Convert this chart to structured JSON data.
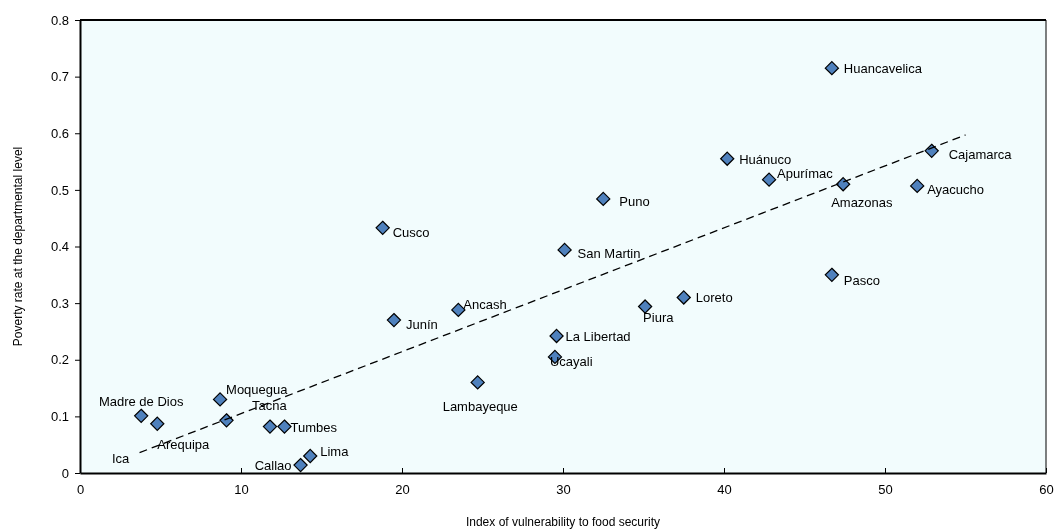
{
  "chart_data": {
    "type": "scatter",
    "xlabel": "Index of vulnerability to food security",
    "ylabel": "Poverty rate at the departmental level",
    "xlim": [
      0,
      60
    ],
    "xticks": [
      0,
      10,
      20,
      30,
      40,
      50,
      60
    ],
    "ylim": [
      0,
      0.8
    ],
    "yticks": [
      0,
      0.1,
      0.2,
      0.3,
      0.4,
      0.5,
      0.6,
      0.7,
      0.8
    ],
    "grid": false,
    "series": [
      {
        "color": "#4f81bd",
        "marker": "diamond",
        "x": [
          46.7,
          40.2,
          42.8,
          47.4,
          52.9,
          52.0,
          32.5,
          18.8,
          30.1,
          46.7,
          37.5,
          35.1,
          23.5,
          19.5,
          29.6,
          29.5,
          24.7,
          8.7,
          3.8,
          4.8,
          9.1,
          11.8,
          12.7,
          13.7,
          14.3
        ],
        "values": [
          0.715,
          0.555,
          0.518,
          0.51,
          0.569,
          0.507,
          0.484,
          0.433,
          0.394,
          0.35,
          0.31,
          0.294,
          0.288,
          0.27,
          0.242,
          0.205,
          0.16,
          0.13,
          0.101,
          0.087,
          0.093,
          0.082,
          0.082,
          0.014,
          0.03
        ]
      },
      {
        "type": "line",
        "color": "#000000",
        "line_style": "dashed",
        "marker": "none",
        "x": [
          3.7,
          55
        ],
        "values": [
          0.036,
          0.597
        ]
      }
    ],
    "annotations": [
      {
        "text": "Huancavelica",
        "x": 46.7,
        "y": 0.715
      },
      {
        "text": "Huánuco",
        "x": 40.2,
        "y": 0.555
      },
      {
        "text": "Apurímac",
        "x": 42.8,
        "y": 0.518
      },
      {
        "text": "Amazonas",
        "x": 47.4,
        "y": 0.51
      },
      {
        "text": "Cajamarca",
        "x": 52.9,
        "y": 0.569
      },
      {
        "text": "Ayacucho",
        "x": 52.0,
        "y": 0.507
      },
      {
        "text": "Puno",
        "x": 32.5,
        "y": 0.484
      },
      {
        "text": "Cusco",
        "x": 18.8,
        "y": 0.433
      },
      {
        "text": "San Martin",
        "x": 30.1,
        "y": 0.394
      },
      {
        "text": "Pasco",
        "x": 46.7,
        "y": 0.35
      },
      {
        "text": "Loreto",
        "x": 37.5,
        "y": 0.31
      },
      {
        "text": "Piura",
        "x": 35.1,
        "y": 0.294
      },
      {
        "text": "Ancash",
        "x": 23.5,
        "y": 0.288
      },
      {
        "text": "Junín",
        "x": 19.5,
        "y": 0.27
      },
      {
        "text": "La Libertad",
        "x": 29.6,
        "y": 0.242
      },
      {
        "text": "Ucayali",
        "x": 29.5,
        "y": 0.205
      },
      {
        "text": "Lambayeque",
        "x": 24.7,
        "y": 0.16
      },
      {
        "text": "Moquegua",
        "x": 8.7,
        "y": 0.13
      },
      {
        "text": "Madre de Dios",
        "x": 3.8,
        "y": 0.101
      },
      {
        "text": "Arequipa",
        "x": 4.8,
        "y": 0.087
      },
      "Ica",
      {
        "text": "Tacna",
        "x": 11.8,
        "y": 0.082
      },
      {
        "text": "Tumbes",
        "x": 12.7,
        "y": 0.082
      },
      {
        "text": "Callao",
        "x": 13.7,
        "y": 0.014
      },
      {
        "text": "Lima",
        "x": 14.3,
        "y": 0.03
      }
    ]
  }
}
